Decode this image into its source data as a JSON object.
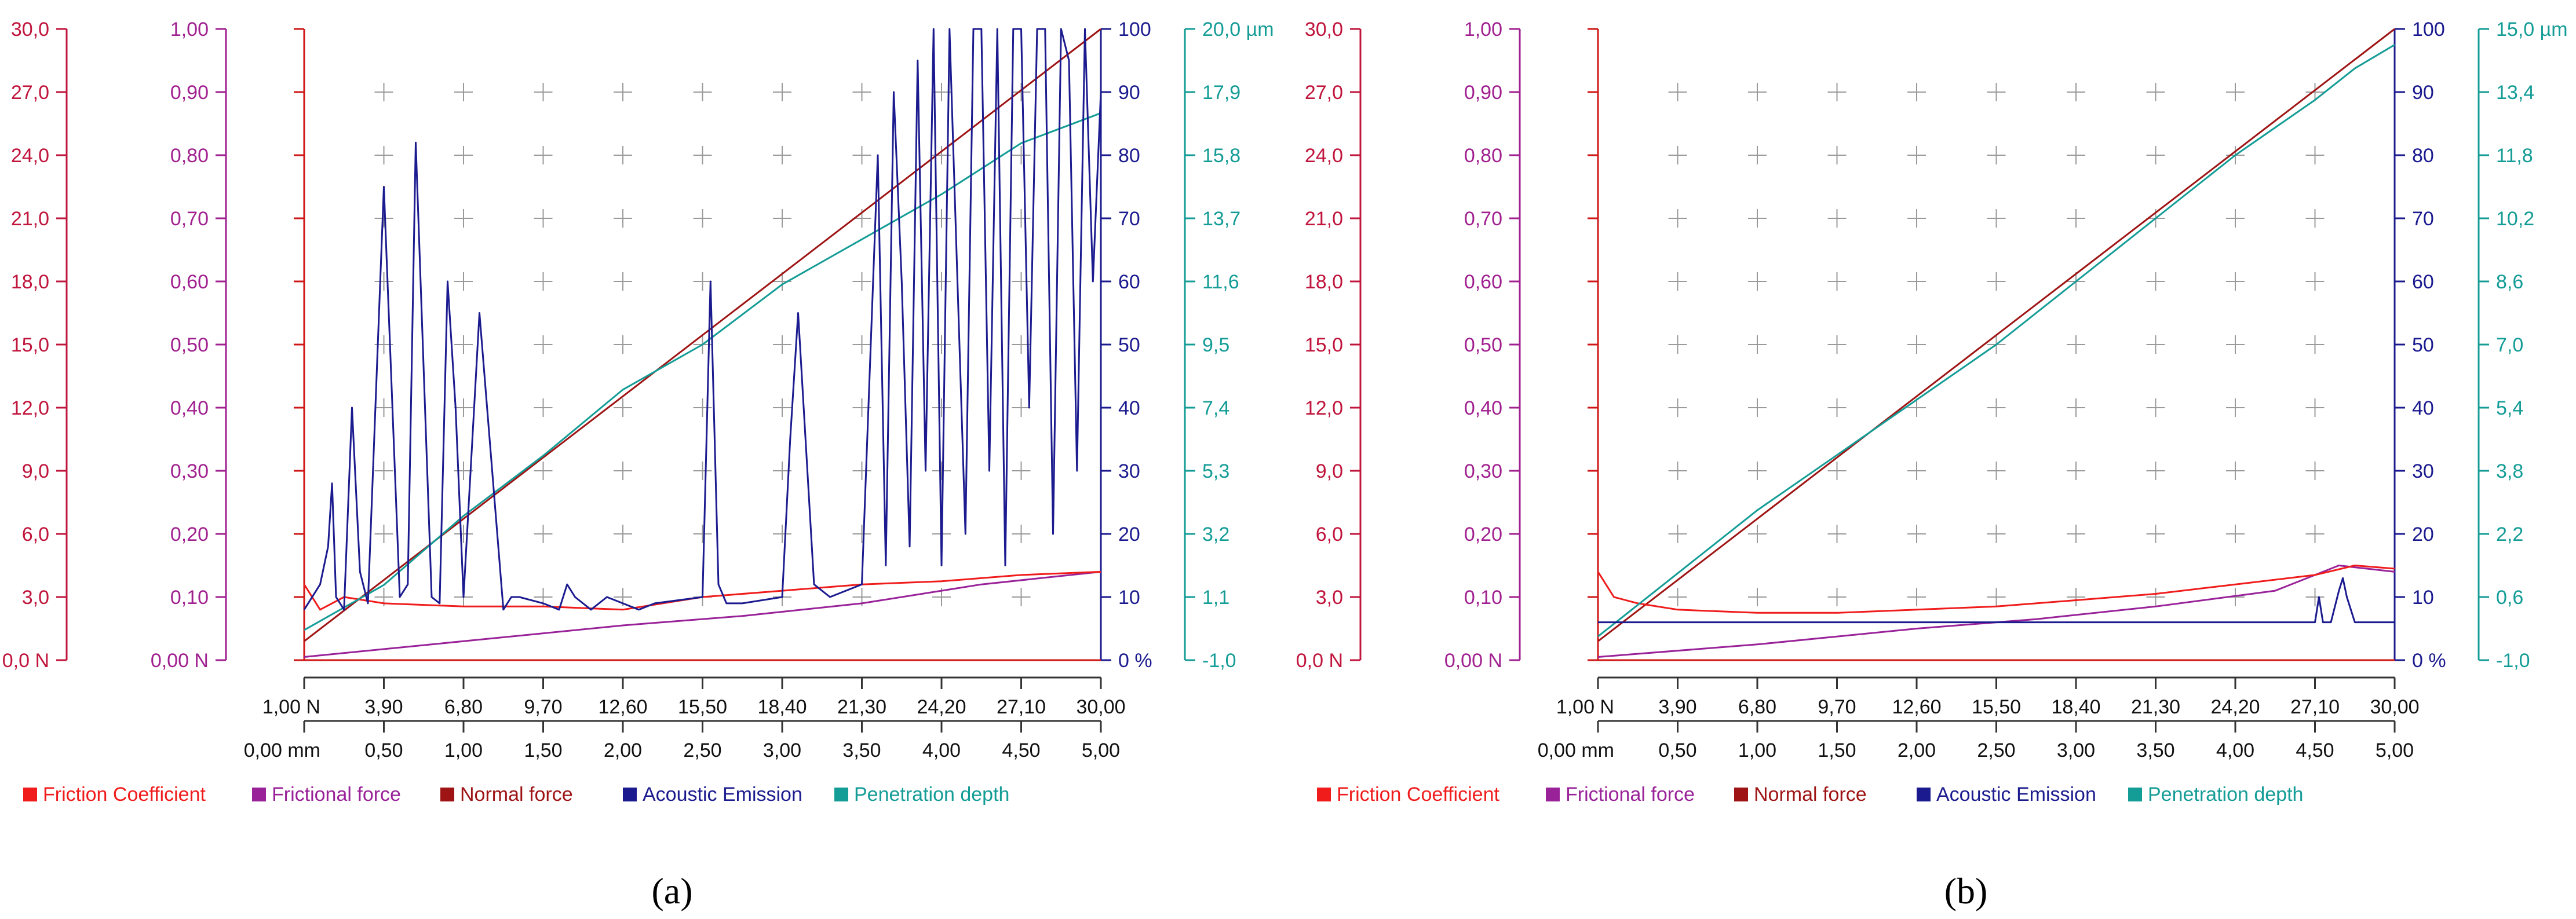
{
  "chart_data": [
    {
      "type": "line",
      "panel_label": "(a)",
      "load_axis": {
        "min": 1,
        "max": 30,
        "ticks": [
          "1,00 N",
          "3,90",
          "6,80",
          "9,70",
          "12,60",
          "15,50",
          "18,40",
          "21,30",
          "24,20",
          "27,10",
          "30,00"
        ]
      },
      "distance_axis": {
        "min": 0,
        "max": 5,
        "ticks": [
          "0,00 mm",
          "0,50",
          "1,00",
          "1,50",
          "2,00",
          "2,50",
          "3,00",
          "3,50",
          "4,00",
          "4,50",
          "5,00"
        ]
      },
      "axes": {
        "frictional_force": {
          "min": 0,
          "max": 30,
          "ticks": [
            "0,0 N",
            "3,0",
            "6,0",
            "9,0",
            "12,0",
            "15,0",
            "18,0",
            "21,0",
            "24,0",
            "27,0",
            "30,0"
          ],
          "color": "#c0153c"
        },
        "friction_coefficient": {
          "min": 0,
          "max": 1,
          "ticks": [
            "0,00 N",
            "0,10",
            "0,20",
            "0,30",
            "0,40",
            "0,50",
            "0,60",
            "0,70",
            "0,80",
            "0,90",
            "1,00"
          ],
          "color": "#a0208f"
        },
        "normal_force": {
          "min": 0,
          "max": 1,
          "ticks": [
            "0,00",
            "0,10",
            "0,20",
            "0,30",
            "0,40",
            "0,50",
            "0,60",
            "0,70",
            "0,80",
            "0,90",
            "1,00"
          ],
          "color": "#d01717"
        },
        "acoustic_emission": {
          "min": 0,
          "max": 100,
          "ticks": [
            "0 %",
            "10",
            "20",
            "30",
            "40",
            "50",
            "60",
            "70",
            "80",
            "90",
            "100"
          ],
          "color": "#1b1b8f"
        },
        "penetration_depth": {
          "min": -1,
          "max": 20,
          "ticks": [
            "-1,0",
            "1,1",
            "3,2",
            "5,3",
            "7,4",
            "9,5",
            "11,6",
            "13,7",
            "15,8",
            "17,9",
            "20,0 µm"
          ],
          "color": "#149c96"
        }
      },
      "series": [
        {
          "name": "Normal force",
          "color": "#9e1414",
          "axis": "normal_force",
          "x": [
            0,
            1
          ],
          "y": [
            0.03,
            1.0
          ]
        },
        {
          "name": "Frictional force",
          "color": "#992299",
          "axis": "normal_force",
          "x": [
            0,
            0.2,
            0.4,
            0.55,
            0.7,
            0.85,
            1.0
          ],
          "y": [
            0.005,
            0.03,
            0.055,
            0.07,
            0.09,
            0.12,
            0.14
          ]
        },
        {
          "name": "Friction Coefficient",
          "color": "#f01c1c",
          "axis": "normal_force",
          "x": [
            0,
            0.02,
            0.05,
            0.1,
            0.2,
            0.3,
            0.4,
            0.5,
            0.6,
            0.7,
            0.8,
            0.9,
            1.0
          ],
          "y": [
            0.12,
            0.08,
            0.1,
            0.09,
            0.085,
            0.085,
            0.08,
            0.1,
            0.11,
            0.12,
            0.125,
            0.135,
            0.14
          ]
        },
        {
          "name": "Penetration depth",
          "color": "#149c96",
          "axis": "penetration_depth",
          "x": [
            0,
            0.1,
            0.2,
            0.3,
            0.4,
            0.5,
            0.6,
            0.7,
            0.8,
            0.9,
            1.0
          ],
          "y": [
            0.0,
            1.5,
            3.8,
            5.8,
            8.0,
            9.5,
            11.5,
            13.0,
            14.5,
            16.2,
            17.2
          ]
        },
        {
          "name": "Acoustic Emission",
          "color": "#1b1b8f",
          "axis": "acoustic_emission",
          "x": [
            0.0,
            0.02,
            0.03,
            0.035,
            0.04,
            0.05,
            0.06,
            0.07,
            0.08,
            0.1,
            0.12,
            0.13,
            0.14,
            0.16,
            0.17,
            0.18,
            0.19,
            0.2,
            0.22,
            0.25,
            0.26,
            0.27,
            0.3,
            0.32,
            0.33,
            0.34,
            0.36,
            0.38,
            0.4,
            0.42,
            0.44,
            0.5,
            0.51,
            0.52,
            0.53,
            0.55,
            0.6,
            0.61,
            0.62,
            0.64,
            0.66,
            0.7,
            0.72,
            0.73,
            0.74,
            0.75,
            0.76,
            0.77,
            0.78,
            0.79,
            0.8,
            0.81,
            0.82,
            0.83,
            0.84,
            0.85,
            0.86,
            0.87,
            0.88,
            0.89,
            0.9,
            0.91,
            0.92,
            0.93,
            0.94,
            0.95,
            0.96,
            0.97,
            0.98,
            0.99,
            1.0
          ],
          "y": [
            8,
            12,
            18,
            28,
            10,
            8,
            40,
            14,
            9,
            75,
            10,
            12,
            82,
            10,
            9,
            60,
            40,
            10,
            55,
            8,
            10,
            10,
            9,
            8,
            12,
            10,
            8,
            10,
            9,
            8,
            9,
            10,
            60,
            12,
            9,
            9,
            10,
            35,
            55,
            12,
            10,
            12,
            80,
            15,
            90,
            60,
            18,
            95,
            30,
            100,
            15,
            100,
            60,
            20,
            100,
            100,
            30,
            100,
            15,
            100,
            100,
            40,
            100,
            100,
            20,
            100,
            95,
            30,
            100,
            60,
            90
          ]
        }
      ],
      "legend": [
        "Friction Coefficient",
        "Frictional force",
        "Normal force",
        "Acoustic Emission",
        "Penetration depth"
      ]
    },
    {
      "type": "line",
      "panel_label": "(b)",
      "load_axis": {
        "min": 1,
        "max": 30,
        "ticks": [
          "1,00 N",
          "3,90",
          "6,80",
          "9,70",
          "12,60",
          "15,50",
          "18,40",
          "21,30",
          "24,20",
          "27,10",
          "30,00"
        ]
      },
      "distance_axis": {
        "min": 0,
        "max": 5,
        "ticks": [
          "0,00 mm",
          "0,50",
          "1,00",
          "1,50",
          "2,00",
          "2,50",
          "3,00",
          "3,50",
          "4,00",
          "4,50",
          "5,00"
        ]
      },
      "axes": {
        "frictional_force": {
          "min": 0,
          "max": 30,
          "ticks": [
            "0,0 N",
            "3,0",
            "6,0",
            "9,0",
            "12,0",
            "15,0",
            "18,0",
            "21,0",
            "24,0",
            "27,0",
            "30,0"
          ],
          "color": "#c0153c"
        },
        "friction_coefficient": {
          "min": 0,
          "max": 1,
          "ticks": [
            "0,00 N",
            "0,10",
            "0,20",
            "0,30",
            "0,40",
            "0,50",
            "0,60",
            "0,70",
            "0,80",
            "0,90",
            "1,00"
          ],
          "color": "#a0208f"
        },
        "normal_force": {
          "min": 0,
          "max": 1,
          "ticks": [
            "0,00",
            "0,10",
            "0,20",
            "0,30",
            "0,40",
            "0,50",
            "0,60",
            "0,70",
            "0,80",
            "0,90",
            "1,00"
          ],
          "color": "#d01717"
        },
        "acoustic_emission": {
          "min": 0,
          "max": 100,
          "ticks": [
            "0 %",
            "10",
            "20",
            "30",
            "40",
            "50",
            "60",
            "70",
            "80",
            "90",
            "100"
          ],
          "color": "#1b1b8f"
        },
        "penetration_depth": {
          "min": -1,
          "max": 15,
          "ticks": [
            "-1,0",
            "0,6",
            "2,2",
            "3,8",
            "5,4",
            "7,0",
            "8,6",
            "10,2",
            "11,8",
            "13,4",
            "15,0 µm"
          ],
          "color": "#149c96"
        }
      },
      "series": [
        {
          "name": "Normal force",
          "color": "#9e1414",
          "axis": "normal_force",
          "x": [
            0,
            1
          ],
          "y": [
            0.03,
            1.0
          ]
        },
        {
          "name": "Frictional force",
          "color": "#992299",
          "axis": "normal_force",
          "x": [
            0,
            0.2,
            0.4,
            0.55,
            0.7,
            0.85,
            0.93,
            1.0
          ],
          "y": [
            0.005,
            0.025,
            0.05,
            0.065,
            0.085,
            0.11,
            0.15,
            0.14
          ]
        },
        {
          "name": "Friction Coefficient",
          "color": "#f01c1c",
          "axis": "normal_force",
          "x": [
            0,
            0.02,
            0.05,
            0.1,
            0.2,
            0.3,
            0.4,
            0.5,
            0.6,
            0.7,
            0.8,
            0.9,
            0.95,
            1.0
          ],
          "y": [
            0.14,
            0.1,
            0.09,
            0.08,
            0.075,
            0.075,
            0.08,
            0.085,
            0.095,
            0.105,
            0.12,
            0.135,
            0.15,
            0.145
          ]
        },
        {
          "name": "Penetration depth",
          "color": "#149c96",
          "axis": "penetration_depth",
          "x": [
            0,
            0.1,
            0.2,
            0.3,
            0.4,
            0.5,
            0.6,
            0.7,
            0.8,
            0.9,
            0.95,
            1.0
          ],
          "y": [
            -0.4,
            1.2,
            2.8,
            4.2,
            5.6,
            7.0,
            8.6,
            10.2,
            11.8,
            13.2,
            14.0,
            14.6
          ]
        },
        {
          "name": "Acoustic Emission",
          "color": "#1b1b8f",
          "axis": "acoustic_emission",
          "x": [
            0,
            0.02,
            0.05,
            0.9,
            0.905,
            0.91,
            0.92,
            0.93,
            0.935,
            0.94,
            0.95,
            0.96,
            1.0
          ],
          "y": [
            6,
            6,
            6,
            6,
            10,
            6,
            6,
            11,
            13,
            10,
            6,
            6,
            6
          ]
        }
      ],
      "legend": [
        "Friction Coefficient",
        "Frictional force",
        "Normal force",
        "Acoustic Emission",
        "Penetration depth"
      ]
    }
  ]
}
